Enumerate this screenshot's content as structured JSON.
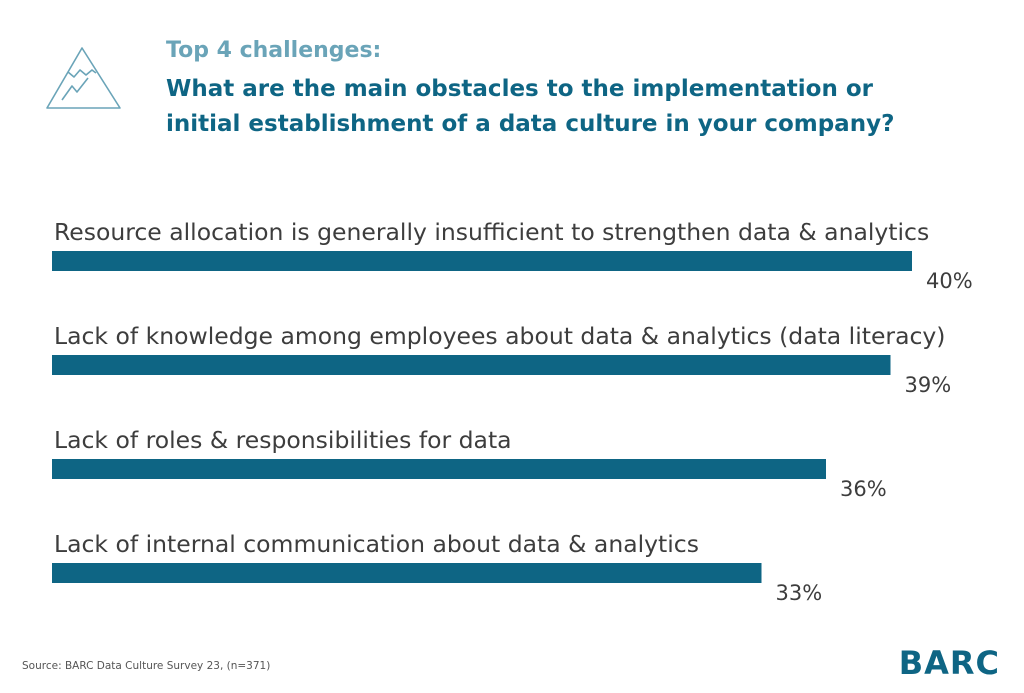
{
  "header": {
    "icon": "mountain-icon",
    "subtitle": "Top 4 challenges:",
    "title": "What are the main obstacles to the implementation or initial establishment of a data culture in your company?"
  },
  "chart_data": {
    "type": "bar",
    "orientation": "horizontal",
    "categories": [
      "Resource allocation is generally insufficient to strengthen data & analytics",
      "Lack of knowledge among employees about data & analytics (data literacy)",
      "Lack of roles & responsibilities for data",
      "Lack of internal communication about data & analytics"
    ],
    "values": [
      40,
      39,
      36,
      33
    ],
    "value_labels": [
      "40%",
      "39%",
      "36%",
      "33%"
    ],
    "unit": "%",
    "bar_color": "#0e6584",
    "grid": false
  },
  "footer": {
    "source": "Source: BARC Data Culture Survey 23, (n=371)",
    "logo": "BARC"
  },
  "colors": {
    "accent": "#0e6584",
    "subtitle": "#6aa4b8",
    "text": "#3d3d3d"
  }
}
